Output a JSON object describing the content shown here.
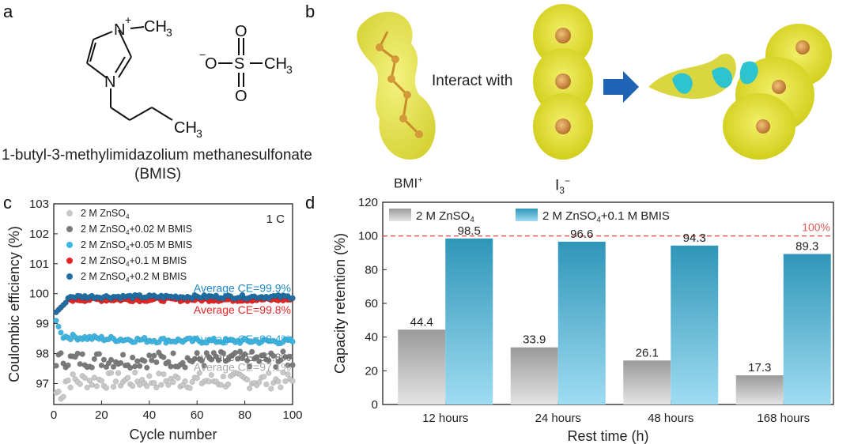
{
  "panels": {
    "a": {
      "label": "a",
      "cation_subscript": "CH",
      "cation_subscript_num": "3",
      "cation_charge": "+",
      "cation_n_top": "N",
      "cation_n_bottom": "N",
      "chain_end": "CH",
      "chain_end_num": "3",
      "anion_o_top": "O",
      "anion_o_bottom": "O",
      "anion_o_left": "O",
      "anion_s": "S",
      "anion_charge": "−",
      "anion_ch3": "CH",
      "anion_ch3_num": "3",
      "name_line1": "1-butyl-3-methylimidazolium methanesulfonate",
      "name_line2": "(BMIS)"
    },
    "b": {
      "label": "b",
      "interact_text": "Interact with",
      "bmi_label": "BMI",
      "bmi_charge": "+",
      "i3_label": "I",
      "i3_sub": "3",
      "i3_charge": "−"
    },
    "c": {
      "label": "c"
    },
    "d": {
      "label": "d"
    }
  },
  "chart_data": [
    {
      "id": "c",
      "type": "scatter",
      "xlabel": "Cycle number",
      "ylabel": "Coulombic efficiency (%)",
      "xlim": [
        0,
        100
      ],
      "ylim": [
        96.3,
        103
      ],
      "xticks": [
        0,
        20,
        40,
        60,
        80,
        100
      ],
      "yticks": [
        97,
        98,
        99,
        100,
        101,
        102,
        103
      ],
      "rate_label": "1 C",
      "legend": "top-left",
      "series": [
        {
          "name_parts": [
            "2 M ZnSO",
            "4",
            ""
          ],
          "color": "#c8c8c8",
          "average_label": "Average CE=97.1%",
          "average": 97.1,
          "label_color": "#a9a9a9"
        },
        {
          "name_parts": [
            "2 M ZnSO",
            "4",
            "+0.02 M BMIS"
          ],
          "color": "#7a7a7a",
          "average_label": "Average CE=97.8%",
          "average": 97.8,
          "label_color": "#6e6e6e"
        },
        {
          "name_parts": [
            "2 M ZnSO",
            "4",
            "+0.05 M BMIS"
          ],
          "color": "#3fb6e2",
          "average_label": "Average CE=98.4%",
          "average": 98.4,
          "label_color": "#2ea9dc"
        },
        {
          "name_parts": [
            "2 M ZnSO",
            "4",
            "+0.1 M BMIS"
          ],
          "color": "#e42626",
          "average_label": "Average CE=99.8%",
          "average": 99.8,
          "label_color": "#e42626"
        },
        {
          "name_parts": [
            "2 M ZnSO",
            "4",
            "+0.2 M BMIS"
          ],
          "color": "#1f6fa5",
          "average_label": "Average CE=99.9%",
          "average": 99.9,
          "label_color": "#1c87c2"
        }
      ]
    },
    {
      "id": "d",
      "type": "bar",
      "xlabel": "Rest time (h)",
      "ylabel": "Capacity retention (%)",
      "ylim": [
        0,
        120
      ],
      "yticks": [
        0,
        20,
        40,
        60,
        80,
        100,
        120
      ],
      "categories": [
        "12 hours",
        "24 hours",
        "48 hours",
        "168 hours"
      ],
      "reference_value": 100,
      "reference_label": "100%",
      "legend": "top-left",
      "series": [
        {
          "name_parts": [
            "2 M ZnSO",
            "4",
            ""
          ],
          "color": "#bdbdbd",
          "values": [
            44.4,
            33.9,
            26.1,
            17.3
          ],
          "labels": [
            "44.4",
            "33.9",
            "26.1",
            "17.3"
          ]
        },
        {
          "name_parts": [
            "2 M ZnSO",
            "4",
            "+0.1 M BMIS"
          ],
          "color": "#3fa9c9",
          "values": [
            98.5,
            96.6,
            94.3,
            89.3
          ],
          "labels": [
            "98.5",
            "96.6",
            "94.3",
            "89.3"
          ]
        }
      ]
    }
  ]
}
